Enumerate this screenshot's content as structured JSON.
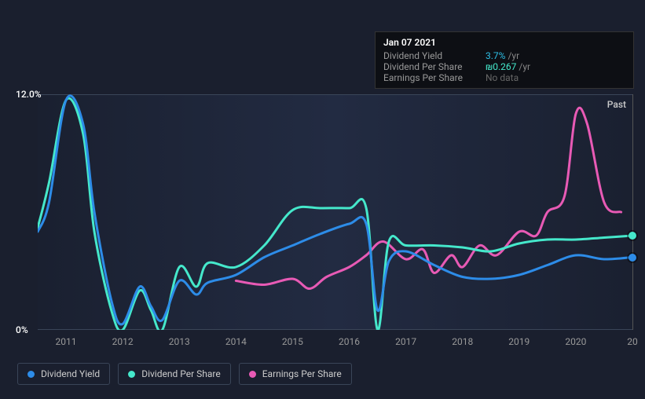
{
  "tooltip": {
    "date": "Jan 07 2021",
    "rows": [
      {
        "label": "Dividend Yield",
        "value": "3.7%",
        "unit": "/yr",
        "class": "blue"
      },
      {
        "label": "Dividend Per Share",
        "value": "₪0.267",
        "unit": "/yr",
        "class": "teal"
      },
      {
        "label": "Earnings Per Share",
        "value": null,
        "nodata": "No data"
      }
    ]
  },
  "chart": {
    "y_max_label": "12.0%",
    "y_min_label": "0%",
    "past_label": "Past",
    "x_labels": [
      "2011",
      "2012",
      "2013",
      "2014",
      "2015",
      "2016",
      "2017",
      "2018",
      "2019",
      "2020",
      "20"
    ],
    "x_min": 2010.5,
    "x_max": 2021,
    "colors": {
      "dividend_yield": "#2d8ce8",
      "dividend_per_share": "#45e8cb",
      "earnings_per_share": "#e85ab5",
      "grid": "#3a4558",
      "bg": "#1a1f2e"
    },
    "stroke_width": 3,
    "series": {
      "dividend_yield": [
        [
          2010.5,
          5.0
        ],
        [
          2010.7,
          6.5
        ],
        [
          2011.0,
          11.7
        ],
        [
          2011.3,
          10.5
        ],
        [
          2011.5,
          6.0
        ],
        [
          2011.8,
          1.5
        ],
        [
          2012.0,
          0.3
        ],
        [
          2012.3,
          2.2
        ],
        [
          2012.5,
          1.2
        ],
        [
          2012.7,
          0.5
        ],
        [
          2013.0,
          2.5
        ],
        [
          2013.3,
          1.8
        ],
        [
          2013.5,
          2.4
        ],
        [
          2014.0,
          2.8
        ],
        [
          2014.5,
          3.7
        ],
        [
          2015.0,
          4.3
        ],
        [
          2015.5,
          4.9
        ],
        [
          2016.0,
          5.4
        ],
        [
          2016.3,
          5.4
        ],
        [
          2016.5,
          1.0
        ],
        [
          2016.7,
          3.5
        ],
        [
          2017.0,
          4.0
        ],
        [
          2017.5,
          3.3
        ],
        [
          2018.0,
          2.7
        ],
        [
          2018.5,
          2.6
        ],
        [
          2019.0,
          2.8
        ],
        [
          2019.5,
          3.3
        ],
        [
          2020.0,
          3.8
        ],
        [
          2020.5,
          3.6
        ],
        [
          2021.0,
          3.7
        ]
      ],
      "dividend_per_share": [
        [
          2010.5,
          5.2
        ],
        [
          2010.7,
          7.5
        ],
        [
          2011.0,
          11.7
        ],
        [
          2011.3,
          10.0
        ],
        [
          2011.5,
          5.0
        ],
        [
          2011.8,
          1.0
        ],
        [
          2012.0,
          0.0
        ],
        [
          2012.3,
          2.0
        ],
        [
          2012.5,
          1.0
        ],
        [
          2012.7,
          0.0
        ],
        [
          2013.0,
          3.2
        ],
        [
          2013.3,
          2.2
        ],
        [
          2013.5,
          3.4
        ],
        [
          2014.0,
          3.2
        ],
        [
          2014.5,
          4.3
        ],
        [
          2015.0,
          6.1
        ],
        [
          2015.5,
          6.2
        ],
        [
          2016.0,
          6.2
        ],
        [
          2016.3,
          6.2
        ],
        [
          2016.5,
          0.0
        ],
        [
          2016.7,
          4.5
        ],
        [
          2017.0,
          4.3
        ],
        [
          2017.5,
          4.3
        ],
        [
          2018.0,
          4.2
        ],
        [
          2018.5,
          4.0
        ],
        [
          2019.0,
          4.4
        ],
        [
          2019.5,
          4.6
        ],
        [
          2020.0,
          4.6
        ],
        [
          2020.5,
          4.7
        ],
        [
          2021.0,
          4.8
        ]
      ],
      "earnings_per_share": [
        [
          2014.0,
          2.5
        ],
        [
          2014.5,
          2.3
        ],
        [
          2015.0,
          2.6
        ],
        [
          2015.3,
          2.1
        ],
        [
          2015.6,
          2.7
        ],
        [
          2016.0,
          3.2
        ],
        [
          2016.3,
          3.8
        ],
        [
          2016.6,
          4.5
        ],
        [
          2017.0,
          3.6
        ],
        [
          2017.3,
          4.1
        ],
        [
          2017.5,
          2.9
        ],
        [
          2017.8,
          3.8
        ],
        [
          2018.0,
          3.2
        ],
        [
          2018.3,
          4.3
        ],
        [
          2018.6,
          3.8
        ],
        [
          2019.0,
          5.0
        ],
        [
          2019.3,
          4.8
        ],
        [
          2019.5,
          6.0
        ],
        [
          2019.8,
          6.8
        ],
        [
          2020.0,
          11.0
        ],
        [
          2020.2,
          10.5
        ],
        [
          2020.5,
          6.5
        ],
        [
          2020.8,
          6.0
        ]
      ]
    },
    "markers": [
      {
        "x": 2021.0,
        "y": 4.8,
        "color": "#45e8cb"
      },
      {
        "x": 2021.0,
        "y": 3.7,
        "color": "#2d8ce8"
      }
    ]
  },
  "legend": [
    {
      "label": "Dividend Yield",
      "color": "#2d8ce8",
      "key": "dividend_yield"
    },
    {
      "label": "Dividend Per Share",
      "color": "#45e8cb",
      "key": "dividend_per_share"
    },
    {
      "label": "Earnings Per Share",
      "color": "#e85ab5",
      "key": "earnings_per_share"
    }
  ]
}
